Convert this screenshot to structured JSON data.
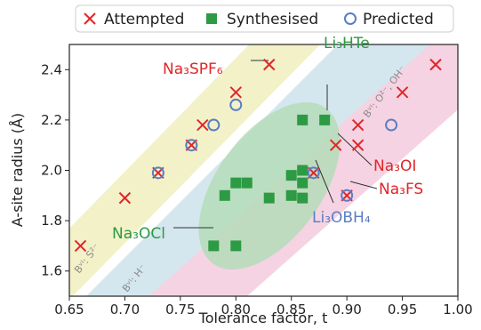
{
  "chart_data": {
    "type": "scatter",
    "xlabel": "Tolerance factor, t",
    "ylabel": "A-site radius (Å)",
    "xlim": [
      0.65,
      1.0
    ],
    "ylim": [
      1.5,
      2.5
    ],
    "xticks": [
      "0.65",
      "0.70",
      "0.75",
      "0.80",
      "0.85",
      "0.90",
      "0.95",
      "1.00"
    ],
    "yticks": [
      "1.6",
      "1.8",
      "2.0",
      "2.2",
      "2.4"
    ],
    "legend": {
      "placement": "top",
      "entries": [
        "Attempted",
        "Synthesised",
        "Predicted"
      ]
    },
    "colors": {
      "attempted": "#e0262a",
      "synthesised": "#2d9a44",
      "predicted": "#5a7ec2",
      "band_sulfide": "#f3f1c8",
      "band_hydride": "#d4e6ee",
      "band_oxide": "#f5d3e3",
      "ellipse": "#b4dcb9"
    },
    "series": [
      {
        "name": "Attempted",
        "marker": "x",
        "points": [
          [
            0.66,
            1.7
          ],
          [
            0.7,
            1.89
          ],
          [
            0.73,
            1.99
          ],
          [
            0.76,
            2.1
          ],
          [
            0.77,
            2.18
          ],
          [
            0.8,
            2.31
          ],
          [
            0.83,
            2.42
          ],
          [
            0.87,
            1.99
          ],
          [
            0.89,
            2.1
          ],
          [
            0.9,
            1.9
          ],
          [
            0.91,
            2.1
          ],
          [
            0.91,
            2.18
          ],
          [
            0.95,
            2.31
          ],
          [
            0.98,
            2.42
          ]
        ]
      },
      {
        "name": "Synthesised",
        "marker": "square",
        "points": [
          [
            0.78,
            1.7
          ],
          [
            0.79,
            1.9
          ],
          [
            0.8,
            1.95
          ],
          [
            0.8,
            1.7
          ],
          [
            0.81,
            1.95
          ],
          [
            0.83,
            1.89
          ],
          [
            0.85,
            1.9
          ],
          [
            0.85,
            1.98
          ],
          [
            0.86,
            1.89
          ],
          [
            0.86,
            1.95
          ],
          [
            0.86,
            2.0
          ],
          [
            0.86,
            2.2
          ],
          [
            0.88,
            2.2
          ]
        ]
      },
      {
        "name": "Predicted",
        "marker": "circle",
        "points": [
          [
            0.73,
            1.99
          ],
          [
            0.76,
            2.1
          ],
          [
            0.78,
            2.18
          ],
          [
            0.8,
            2.26
          ],
          [
            0.87,
            1.99
          ],
          [
            0.9,
            1.9
          ],
          [
            0.94,
            2.18
          ]
        ]
      }
    ],
    "annotations": [
      {
        "label": "Na₃SPF₆",
        "color": "#e0262a",
        "point": [
          0.83,
          2.42
        ]
      },
      {
        "label": "Li₃HTe",
        "color": "#2d9a44",
        "point": [
          0.88,
          2.2
        ]
      },
      {
        "label": "Na₃OI",
        "color": "#e0262a",
        "point": [
          0.89,
          2.1
        ]
      },
      {
        "label": "Na₃FS",
        "color": "#e0262a",
        "point": [
          0.9,
          1.9
        ]
      },
      {
        "label": "Li₃OBH₄",
        "color": "#5a7ec2",
        "point": [
          0.87,
          1.99
        ]
      },
      {
        "label": "Na₃OCl",
        "color": "#2d9a44",
        "point": [
          0.78,
          1.7
        ]
      }
    ],
    "bands": [
      {
        "label": "Bᵛᴵ: S²⁻"
      },
      {
        "label": "Bᵛᴵ: H⁻"
      },
      {
        "label": "Bᵛᴵ: O²⁻, OH⁻"
      }
    ]
  }
}
